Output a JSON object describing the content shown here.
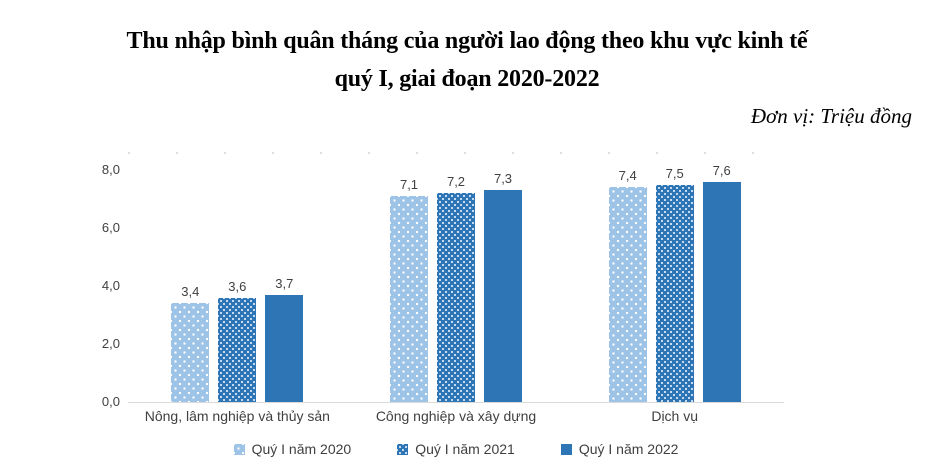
{
  "title": {
    "line1": "Thu nhập bình quân tháng của người lao động theo khu vực kinh tế",
    "line2": "quý I, giai đoạn 2020-2022"
  },
  "unit_label": "Đơn vị: Triệu đồng",
  "chart_data": {
    "type": "bar",
    "title": "Thu nhập bình quân tháng của người lao động theo khu vực kinh tế quý I, giai đoạn 2020-2022",
    "unit": "Triệu đồng",
    "categories": [
      "Nông, lâm nghiệp và thủy sản",
      "Công nghiệp và xây dựng",
      "Dịch vụ"
    ],
    "series": [
      {
        "name": "Quý I năm 2020",
        "values": [
          3.4,
          7.1,
          7.4
        ],
        "labels": [
          "3,4",
          "7,1",
          "7,4"
        ],
        "color": "#9DC3E6",
        "pattern": "white-dots-on-light-blue"
      },
      {
        "name": "Quý I năm 2021",
        "values": [
          3.6,
          7.2,
          7.5
        ],
        "labels": [
          "3,6",
          "7,2",
          "7,5"
        ],
        "color": "#2E75B6",
        "pattern": "light-dots-on-dark-blue"
      },
      {
        "name": "Quý I năm 2022",
        "values": [
          3.7,
          7.3,
          7.6
        ],
        "labels": [
          "3,7",
          "7,3",
          "7,6"
        ],
        "color": "#2E75B6",
        "pattern": "solid"
      }
    ],
    "y_axis": {
      "ticks": [
        "0,0",
        "2,0",
        "4,0",
        "6,0",
        "8,0"
      ],
      "tick_values": [
        0,
        2,
        4,
        6,
        8
      ],
      "min": 0,
      "max": 8,
      "decimal_separator": ","
    },
    "xlabel": "",
    "ylabel": "",
    "legend": [
      "Quý I năm 2020",
      "Quý I năm 2021",
      "Quý I năm 2022"
    ],
    "legend_position": "bottom",
    "grid": "off",
    "data_labels": "above-bars"
  },
  "colors": {
    "series_2020": "#9DC3E6",
    "series_2021": "#2E75B6",
    "series_2022": "#2E75B6",
    "axis_line": "#D9D9D9",
    "label_text": "#404040",
    "title_text": "#000000",
    "background": "#FFFFFF"
  }
}
